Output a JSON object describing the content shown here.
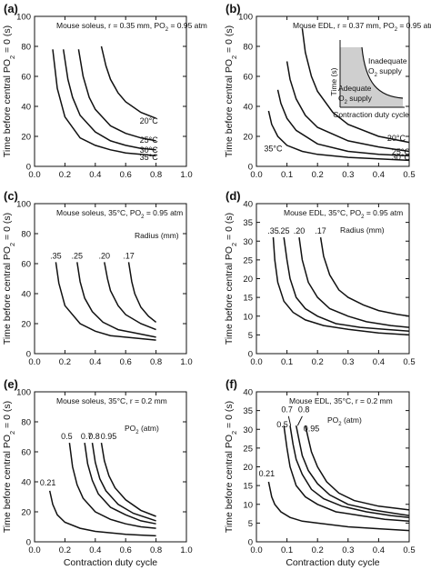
{
  "figure": {
    "ylabel_html": "Time before central PO2 = 0 (s)",
    "ylabel_parts": [
      "Time before central PO",
      "2",
      " = 0 (s)"
    ],
    "xlabel": "Contraction duty cycle"
  },
  "chart_data": [
    {
      "panel": "(a)",
      "type": "line",
      "title": "Mouse soleus, r = 0.35 mm, PO2 = 0.95 atm",
      "title_parts": [
        "Mouse soleus, r = 0.35 mm, PO",
        "2",
        " = 0.95 atm"
      ],
      "xlim": [
        0,
        1.0
      ],
      "ylim": [
        0,
        100
      ],
      "xticks": [
        0.0,
        0.2,
        0.4,
        0.6,
        0.8,
        1.0
      ],
      "xtick_labels": [
        "0.0",
        "0.2",
        "0.4",
        "0.6",
        "0.8",
        "1.0"
      ],
      "yticks": [
        0,
        20,
        40,
        60,
        80,
        100
      ],
      "ytick_labels": [
        "0",
        "20",
        "40",
        "60",
        "80",
        "100"
      ],
      "series": [
        {
          "name": "35°C",
          "x": [
            0.12,
            0.15,
            0.2,
            0.3,
            0.4,
            0.5,
            0.6,
            0.7,
            0.8
          ],
          "y": [
            78,
            52,
            33,
            19,
            14,
            11,
            9,
            8,
            7
          ]
        },
        {
          "name": "30°C",
          "x": [
            0.19,
            0.22,
            0.25,
            0.3,
            0.4,
            0.5,
            0.6,
            0.7,
            0.8
          ],
          "y": [
            78,
            58,
            46,
            34,
            23,
            17,
            14,
            12,
            11
          ]
        },
        {
          "name": "25°C",
          "x": [
            0.29,
            0.32,
            0.36,
            0.4,
            0.5,
            0.6,
            0.7,
            0.8
          ],
          "y": [
            78,
            60,
            46,
            38,
            27,
            22,
            19,
            17
          ]
        },
        {
          "name": "20°C",
          "x": [
            0.44,
            0.47,
            0.5,
            0.55,
            0.6,
            0.7,
            0.8
          ],
          "y": [
            80,
            67,
            58,
            49,
            43,
            36,
            32
          ]
        }
      ]
    },
    {
      "panel": "(b)",
      "type": "line",
      "title": "Mouse EDL, r = 0.37 mm, PO2 = 0.95 atm",
      "title_parts": [
        "Mouse EDL, r = 0.37 mm, PO",
        "2",
        " = 0.95 atm"
      ],
      "xlim": [
        0,
        0.5
      ],
      "ylim": [
        0,
        100
      ],
      "xticks": [
        0.0,
        0.1,
        0.2,
        0.3,
        0.4,
        0.5
      ],
      "xtick_labels": [
        "0.0",
        "0.1",
        "0.2",
        "0.3",
        "0.4",
        "0.5"
      ],
      "yticks": [
        0,
        20,
        40,
        60,
        80,
        100
      ],
      "ytick_labels": [
        "0",
        "20",
        "40",
        "60",
        "80",
        "100"
      ],
      "series": [
        {
          "name": "35°C",
          "x": [
            0.04,
            0.05,
            0.07,
            0.1,
            0.15,
            0.2,
            0.3,
            0.4,
            0.5
          ],
          "y": [
            37,
            28,
            20,
            14,
            10,
            8,
            6,
            5,
            4
          ]
        },
        {
          "name": "30°C",
          "x": [
            0.07,
            0.08,
            0.1,
            0.13,
            0.2,
            0.3,
            0.4,
            0.5
          ],
          "y": [
            51,
            42,
            32,
            24,
            15,
            10,
            8,
            7
          ]
        },
        {
          "name": "25°C",
          "x": [
            0.1,
            0.11,
            0.13,
            0.16,
            0.2,
            0.3,
            0.4,
            0.5
          ],
          "y": [
            70,
            58,
            45,
            34,
            26,
            17,
            13,
            10
          ]
        },
        {
          "name": "20°C",
          "x": [
            0.15,
            0.16,
            0.18,
            0.2,
            0.25,
            0.3,
            0.4,
            0.5
          ],
          "y": [
            92,
            76,
            60,
            50,
            36,
            28,
            20,
            16
          ]
        }
      ],
      "inset": {
        "ylabel": "Time (s)",
        "xlabel": "Contraction duty cycle",
        "region_inadequate": "Inadequate",
        "region_inadequate_2": "O2 supply",
        "region_inadequate_2_parts": [
          "O",
          "2",
          " supply"
        ],
        "region_adequate": "Adequate",
        "region_adequate_2": "O2 supply",
        "region_adequate_2_parts": [
          "O",
          "2",
          " supply"
        ]
      }
    },
    {
      "panel": "(c)",
      "type": "line",
      "title": "Mouse soleus, 35°C, PO2 = 0.95 atm",
      "title_parts": [
        "Mouse soleus, 35°C, PO",
        "2",
        " = 0.95 atm"
      ],
      "legend_title": "Radius (mm)",
      "xlim": [
        0,
        1.0
      ],
      "ylim": [
        0,
        100
      ],
      "xticks": [
        0.0,
        0.2,
        0.4,
        0.6,
        0.8,
        1.0
      ],
      "xtick_labels": [
        "0.0",
        "0.2",
        "0.4",
        "0.6",
        "0.8",
        "1.0"
      ],
      "yticks": [
        0,
        20,
        40,
        60,
        80,
        100
      ],
      "ytick_labels": [
        "0",
        "20",
        "40",
        "60",
        "80",
        "100"
      ],
      "series": [
        {
          "name": ".35",
          "x": [
            0.14,
            0.16,
            0.2,
            0.3,
            0.4,
            0.5,
            0.6,
            0.7,
            0.8
          ],
          "y": [
            61,
            47,
            32,
            20,
            15,
            12,
            11,
            10,
            9
          ]
        },
        {
          "name": ".25",
          "x": [
            0.28,
            0.3,
            0.33,
            0.38,
            0.45,
            0.55,
            0.65,
            0.8
          ],
          "y": [
            61,
            48,
            37,
            28,
            21,
            16,
            14,
            11
          ]
        },
        {
          "name": ".20",
          "x": [
            0.46,
            0.48,
            0.5,
            0.55,
            0.6,
            0.7,
            0.8
          ],
          "y": [
            61,
            50,
            42,
            32,
            26,
            20,
            16
          ]
        },
        {
          "name": ".17",
          "x": [
            0.62,
            0.64,
            0.66,
            0.7,
            0.75,
            0.8
          ],
          "y": [
            61,
            48,
            40,
            31,
            25,
            21
          ]
        }
      ]
    },
    {
      "panel": "(d)",
      "type": "line",
      "title": "Mouse EDL, 35°C, PO2 = 0.95 atm",
      "title_parts": [
        "Mouse EDL, 35°C, PO",
        "2",
        " = 0.95 atm"
      ],
      "legend_title": "Radius (mm)",
      "xlim": [
        0,
        0.5
      ],
      "ylim": [
        0,
        40
      ],
      "xticks": [
        0.0,
        0.1,
        0.2,
        0.3,
        0.4,
        0.5
      ],
      "xtick_labels": [
        "0.0",
        "0.1",
        "0.2",
        "0.3",
        "0.4",
        "0.5"
      ],
      "yticks": [
        0,
        5,
        10,
        15,
        20,
        25,
        30,
        35,
        40
      ],
      "ytick_labels": [
        "0",
        "5",
        "10",
        "15",
        "20",
        "25",
        "30",
        "35",
        "40"
      ],
      "series": [
        {
          "name": ".35",
          "x": [
            0.055,
            0.06,
            0.07,
            0.09,
            0.12,
            0.16,
            0.22,
            0.3,
            0.4,
            0.5
          ],
          "y": [
            31,
            25,
            19,
            14,
            11,
            9,
            7.5,
            6.5,
            5.5,
            5
          ]
        },
        {
          "name": ".25",
          "x": [
            0.09,
            0.1,
            0.11,
            0.13,
            0.16,
            0.2,
            0.26,
            0.34,
            0.42,
            0.5
          ],
          "y": [
            31,
            25,
            20,
            15,
            12,
            10,
            8,
            7,
            6.5,
            6
          ]
        },
        {
          "name": ".20",
          "x": [
            0.14,
            0.15,
            0.17,
            0.2,
            0.24,
            0.3,
            0.36,
            0.44,
            0.5
          ],
          "y": [
            31,
            25,
            19,
            15,
            12,
            10,
            8.5,
            7.5,
            7
          ]
        },
        {
          "name": ".17",
          "x": [
            0.21,
            0.22,
            0.24,
            0.27,
            0.3,
            0.35,
            0.4,
            0.46,
            0.5
          ],
          "y": [
            31,
            26,
            21,
            17,
            15,
            13,
            11.5,
            10.5,
            10
          ]
        }
      ]
    },
    {
      "panel": "(e)",
      "type": "line",
      "title": "Mouse soleus, 35°C, r = 0.2 mm",
      "legend_title": "PO2 (atm)",
      "legend_title_parts": [
        "PO",
        "2",
        " (atm)"
      ],
      "xlim": [
        0,
        1.0
      ],
      "ylim": [
        0,
        100
      ],
      "xticks": [
        0.0,
        0.2,
        0.4,
        0.6,
        0.8,
        1.0
      ],
      "xtick_labels": [
        "0.0",
        "0.2",
        "0.4",
        "0.6",
        "0.8",
        "1.0"
      ],
      "yticks": [
        0,
        20,
        40,
        60,
        80,
        100
      ],
      "ytick_labels": [
        "0",
        "20",
        "40",
        "60",
        "80",
        "100"
      ],
      "series": [
        {
          "name": "0.21",
          "x": [
            0.1,
            0.12,
            0.15,
            0.2,
            0.3,
            0.4,
            0.5,
            0.6,
            0.7,
            0.8
          ],
          "y": [
            34,
            25,
            18,
            13,
            9,
            7,
            6,
            5,
            4.5,
            4
          ]
        },
        {
          "name": "0.5",
          "x": [
            0.23,
            0.25,
            0.28,
            0.32,
            0.4,
            0.5,
            0.6,
            0.7,
            0.8
          ],
          "y": [
            66,
            50,
            38,
            29,
            20,
            15,
            12,
            10,
            9
          ]
        },
        {
          "name": "0.7",
          "x": [
            0.33,
            0.35,
            0.38,
            0.42,
            0.5,
            0.6,
            0.7,
            0.8
          ],
          "y": [
            66,
            52,
            41,
            32,
            23,
            18,
            14,
            12
          ]
        },
        {
          "name": "0.8",
          "x": [
            0.38,
            0.4,
            0.43,
            0.47,
            0.55,
            0.65,
            0.8
          ],
          "y": [
            66,
            53,
            42,
            34,
            25,
            19,
            14
          ]
        },
        {
          "name": "0.95",
          "x": [
            0.44,
            0.46,
            0.49,
            0.53,
            0.6,
            0.7,
            0.8
          ],
          "y": [
            66,
            54,
            44,
            36,
            28,
            21,
            17
          ]
        }
      ]
    },
    {
      "panel": "(f)",
      "type": "line",
      "title": "Mouse EDL, 35°C, r = 0.2 mm",
      "legend_title": "PO2 (atm)",
      "legend_title_parts": [
        "PO",
        "2",
        " (atm)"
      ],
      "xlim": [
        0,
        0.5
      ],
      "ylim": [
        0,
        40
      ],
      "xticks": [
        0.0,
        0.1,
        0.2,
        0.3,
        0.4,
        0.5
      ],
      "xtick_labels": [
        "0.0",
        "0.1",
        "0.2",
        "0.3",
        "0.4",
        "0.5"
      ],
      "yticks": [
        0,
        5,
        10,
        15,
        20,
        25,
        30,
        35,
        40
      ],
      "ytick_labels": [
        "0",
        "5",
        "10",
        "15",
        "20",
        "25",
        "30",
        "35",
        "40"
      ],
      "series": [
        {
          "name": "0.21",
          "x": [
            0.04,
            0.05,
            0.06,
            0.08,
            0.11,
            0.15,
            0.2,
            0.3,
            0.4,
            0.5
          ],
          "y": [
            16,
            12,
            10,
            8,
            6.5,
            5.5,
            5,
            4,
            3.5,
            3
          ]
        },
        {
          "name": "0.5",
          "x": [
            0.09,
            0.1,
            0.11,
            0.13,
            0.16,
            0.2,
            0.26,
            0.34,
            0.42,
            0.5
          ],
          "y": [
            31,
            25,
            20,
            15,
            12,
            10,
            8,
            7,
            6,
            5.5
          ]
        },
        {
          "name": "0.7",
          "x": [
            0.11,
            0.12,
            0.13,
            0.15,
            0.18,
            0.22,
            0.28,
            0.36,
            0.44,
            0.5
          ],
          "y": [
            31,
            26,
            22,
            18,
            14,
            11.5,
            9.5,
            8,
            7,
            6.5
          ]
        },
        {
          "name": "0.8",
          "x": [
            0.13,
            0.14,
            0.15,
            0.17,
            0.2,
            0.24,
            0.3,
            0.38,
            0.46,
            0.5
          ],
          "y": [
            31,
            27,
            23,
            19,
            15.5,
            12.5,
            10,
            8.5,
            7.5,
            7
          ]
        },
        {
          "name": "0.95",
          "x": [
            0.16,
            0.17,
            0.18,
            0.2,
            0.23,
            0.27,
            0.32,
            0.4,
            0.5
          ],
          "y": [
            31,
            27.5,
            24,
            20,
            16,
            13,
            11,
            9.5,
            8.5
          ]
        }
      ]
    }
  ]
}
